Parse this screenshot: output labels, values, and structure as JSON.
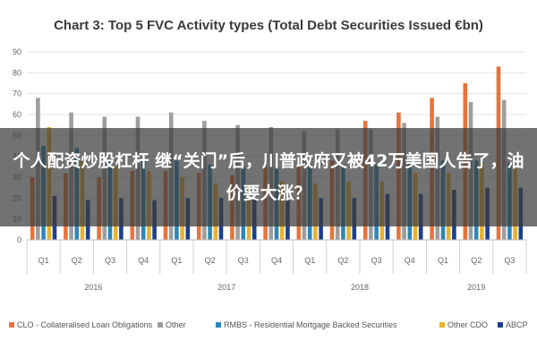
{
  "chart_data": {
    "type": "bar",
    "title": "Chart 3: Top 5 FVC Activity types (Total Debt Securities Issued €bn)",
    "ylim": [
      0,
      90
    ],
    "yticks": [
      0,
      10,
      20,
      30,
      40,
      50,
      60,
      70,
      80,
      90
    ],
    "categories": [
      "Q1",
      "Q2",
      "Q3",
      "Q4",
      "Q1",
      "Q2",
      "Q3",
      "Q4",
      "Q1",
      "Q2",
      "Q3",
      "Q4",
      "Q1",
      "Q2",
      "Q3"
    ],
    "groups": [
      {
        "label": "2016",
        "count": 4
      },
      {
        "label": "2017",
        "count": 4
      },
      {
        "label": "2018",
        "count": 4
      },
      {
        "label": "2019",
        "count": 3
      }
    ],
    "series": [
      {
        "name": "CLO - Collateralised Loan Obligations",
        "color": "#e8743b",
        "values": [
          30,
          32,
          30,
          33,
          33,
          32,
          31,
          35,
          36,
          38,
          57,
          61,
          68,
          75,
          83
        ]
      },
      {
        "name": "Other",
        "color": "#9e9e9e",
        "values": [
          68,
          61,
          59,
          59,
          61,
          57,
          55,
          54,
          52,
          53,
          53,
          56,
          59,
          66,
          67
        ]
      },
      {
        "name": "RMBS - Residential Mortgage Backed Securities",
        "color": "#2e86b7",
        "values": [
          45,
          44,
          38,
          38,
          38,
          36,
          35,
          35,
          36,
          36,
          36,
          37,
          38,
          38,
          37
        ]
      },
      {
        "name": "Other CDO",
        "color": "#e8b230",
        "values": [
          54,
          38,
          35,
          33,
          30,
          27,
          27,
          28,
          27,
          28,
          28,
          32,
          32,
          37,
          35
        ]
      },
      {
        "name": "ABCP",
        "color": "#1f3f8a",
        "values": [
          21,
          19,
          20,
          19,
          20,
          20,
          20,
          20,
          20,
          20,
          22,
          22,
          24,
          25,
          25
        ]
      }
    ],
    "grid": true,
    "legend_position": "bottom"
  },
  "overlay": {
    "text": "个人配资炒股杠杆 继“关门”后，川普政府又被42万美国人告了，油价要大涨？"
  }
}
